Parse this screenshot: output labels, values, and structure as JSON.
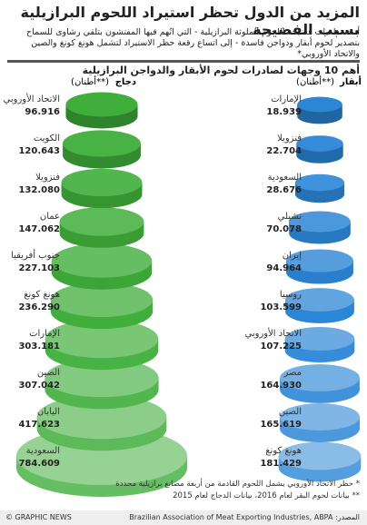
{
  "title": "المزيد من الدول تحظر استيراد اللحوم البرازيلية بسبب الفضيحة",
  "subtitle": "أدت تداعيات فضيحة اللحوم الملوثة البرازيلية - التي اتُهم فيها المفتشون بتلقي رشاوى للسماح بتصدير لحوم أبقار ودواجن فاسدة - إلى اتساع رقعة حظر الاستيراد لتشمل هونغ كونغ والصين والاتحاد الأوروبي*",
  "heading": "أهم 10 وجهات لصادرات لحوم الأبقار والدواجن البرازيلية",
  "chart_data": [
    {
      "type": "disc-stack",
      "title": "دجاج",
      "unit": "(أطنان**)",
      "color": "#3fae3a",
      "categories": [
        "الاتحاد الأوروبي",
        "الكويت",
        "فنزويلا",
        "عمان",
        "جنوب أفريقيا",
        "هونغ كونغ",
        "الإمارات",
        "الصين",
        "اليابان",
        "السعودية"
      ],
      "values": [
        96.916,
        120.643,
        132.08,
        147.062,
        227.103,
        236.29,
        303.181,
        307.042,
        417.623,
        784.609
      ],
      "value_labels": [
        "96.916",
        "120.643",
        "132.080",
        "147.062",
        "227.103",
        "236.290",
        "303.181",
        "307.042",
        "417.623",
        "784.609"
      ]
    },
    {
      "type": "disc-stack",
      "title": "أبقار",
      "unit": "(أطنان**)",
      "color": "#2b86d6",
      "categories": [
        "الإمارات",
        "فنزويلا",
        "السعودية",
        "تشيلي",
        "إيران",
        "روسيا",
        "الاتحاد الأوروبي",
        "مصر",
        "الصين",
        "هونغ كونغ"
      ],
      "values": [
        18.939,
        22.704,
        28.676,
        70.078,
        94.964,
        103.599,
        107.225,
        164.93,
        165.619,
        181.429
      ],
      "value_labels": [
        "18.939",
        "22.704",
        "28.676",
        "70.078",
        "94.964",
        "103.599",
        "107.225",
        "164.930",
        "165.619",
        "181.429"
      ]
    }
  ],
  "notes": [
    "* حظر الاتحاد الأوروبي يشمل اللحوم القادمة من أربعة مصانع برازيلية محددة",
    "** بيانات لحوم البقر لعام 2016، بيانات الدجاج لعام 2015"
  ],
  "source": "المصدر: Brazilian Association of Meat Exporting Industries, ABPA",
  "copyright": "© GRAPHIC NEWS"
}
